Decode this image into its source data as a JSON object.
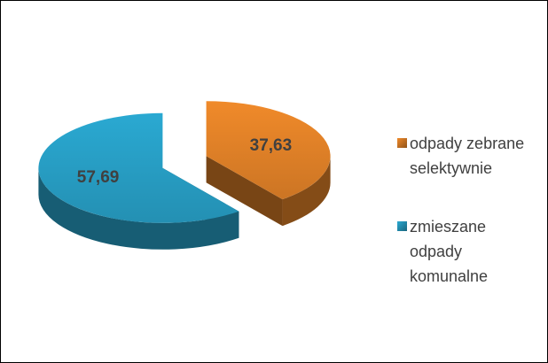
{
  "chart_data": {
    "type": "pie3d",
    "categories": [
      "odpady zebrane selektywnie",
      "zmieszane odpady komunalne"
    ],
    "values": [
      37.63,
      57.69
    ],
    "value_labels": [
      "37,63",
      "57,69"
    ],
    "colors": [
      "#f08a2a",
      "#2aa9d2"
    ],
    "legend": "right"
  }
}
